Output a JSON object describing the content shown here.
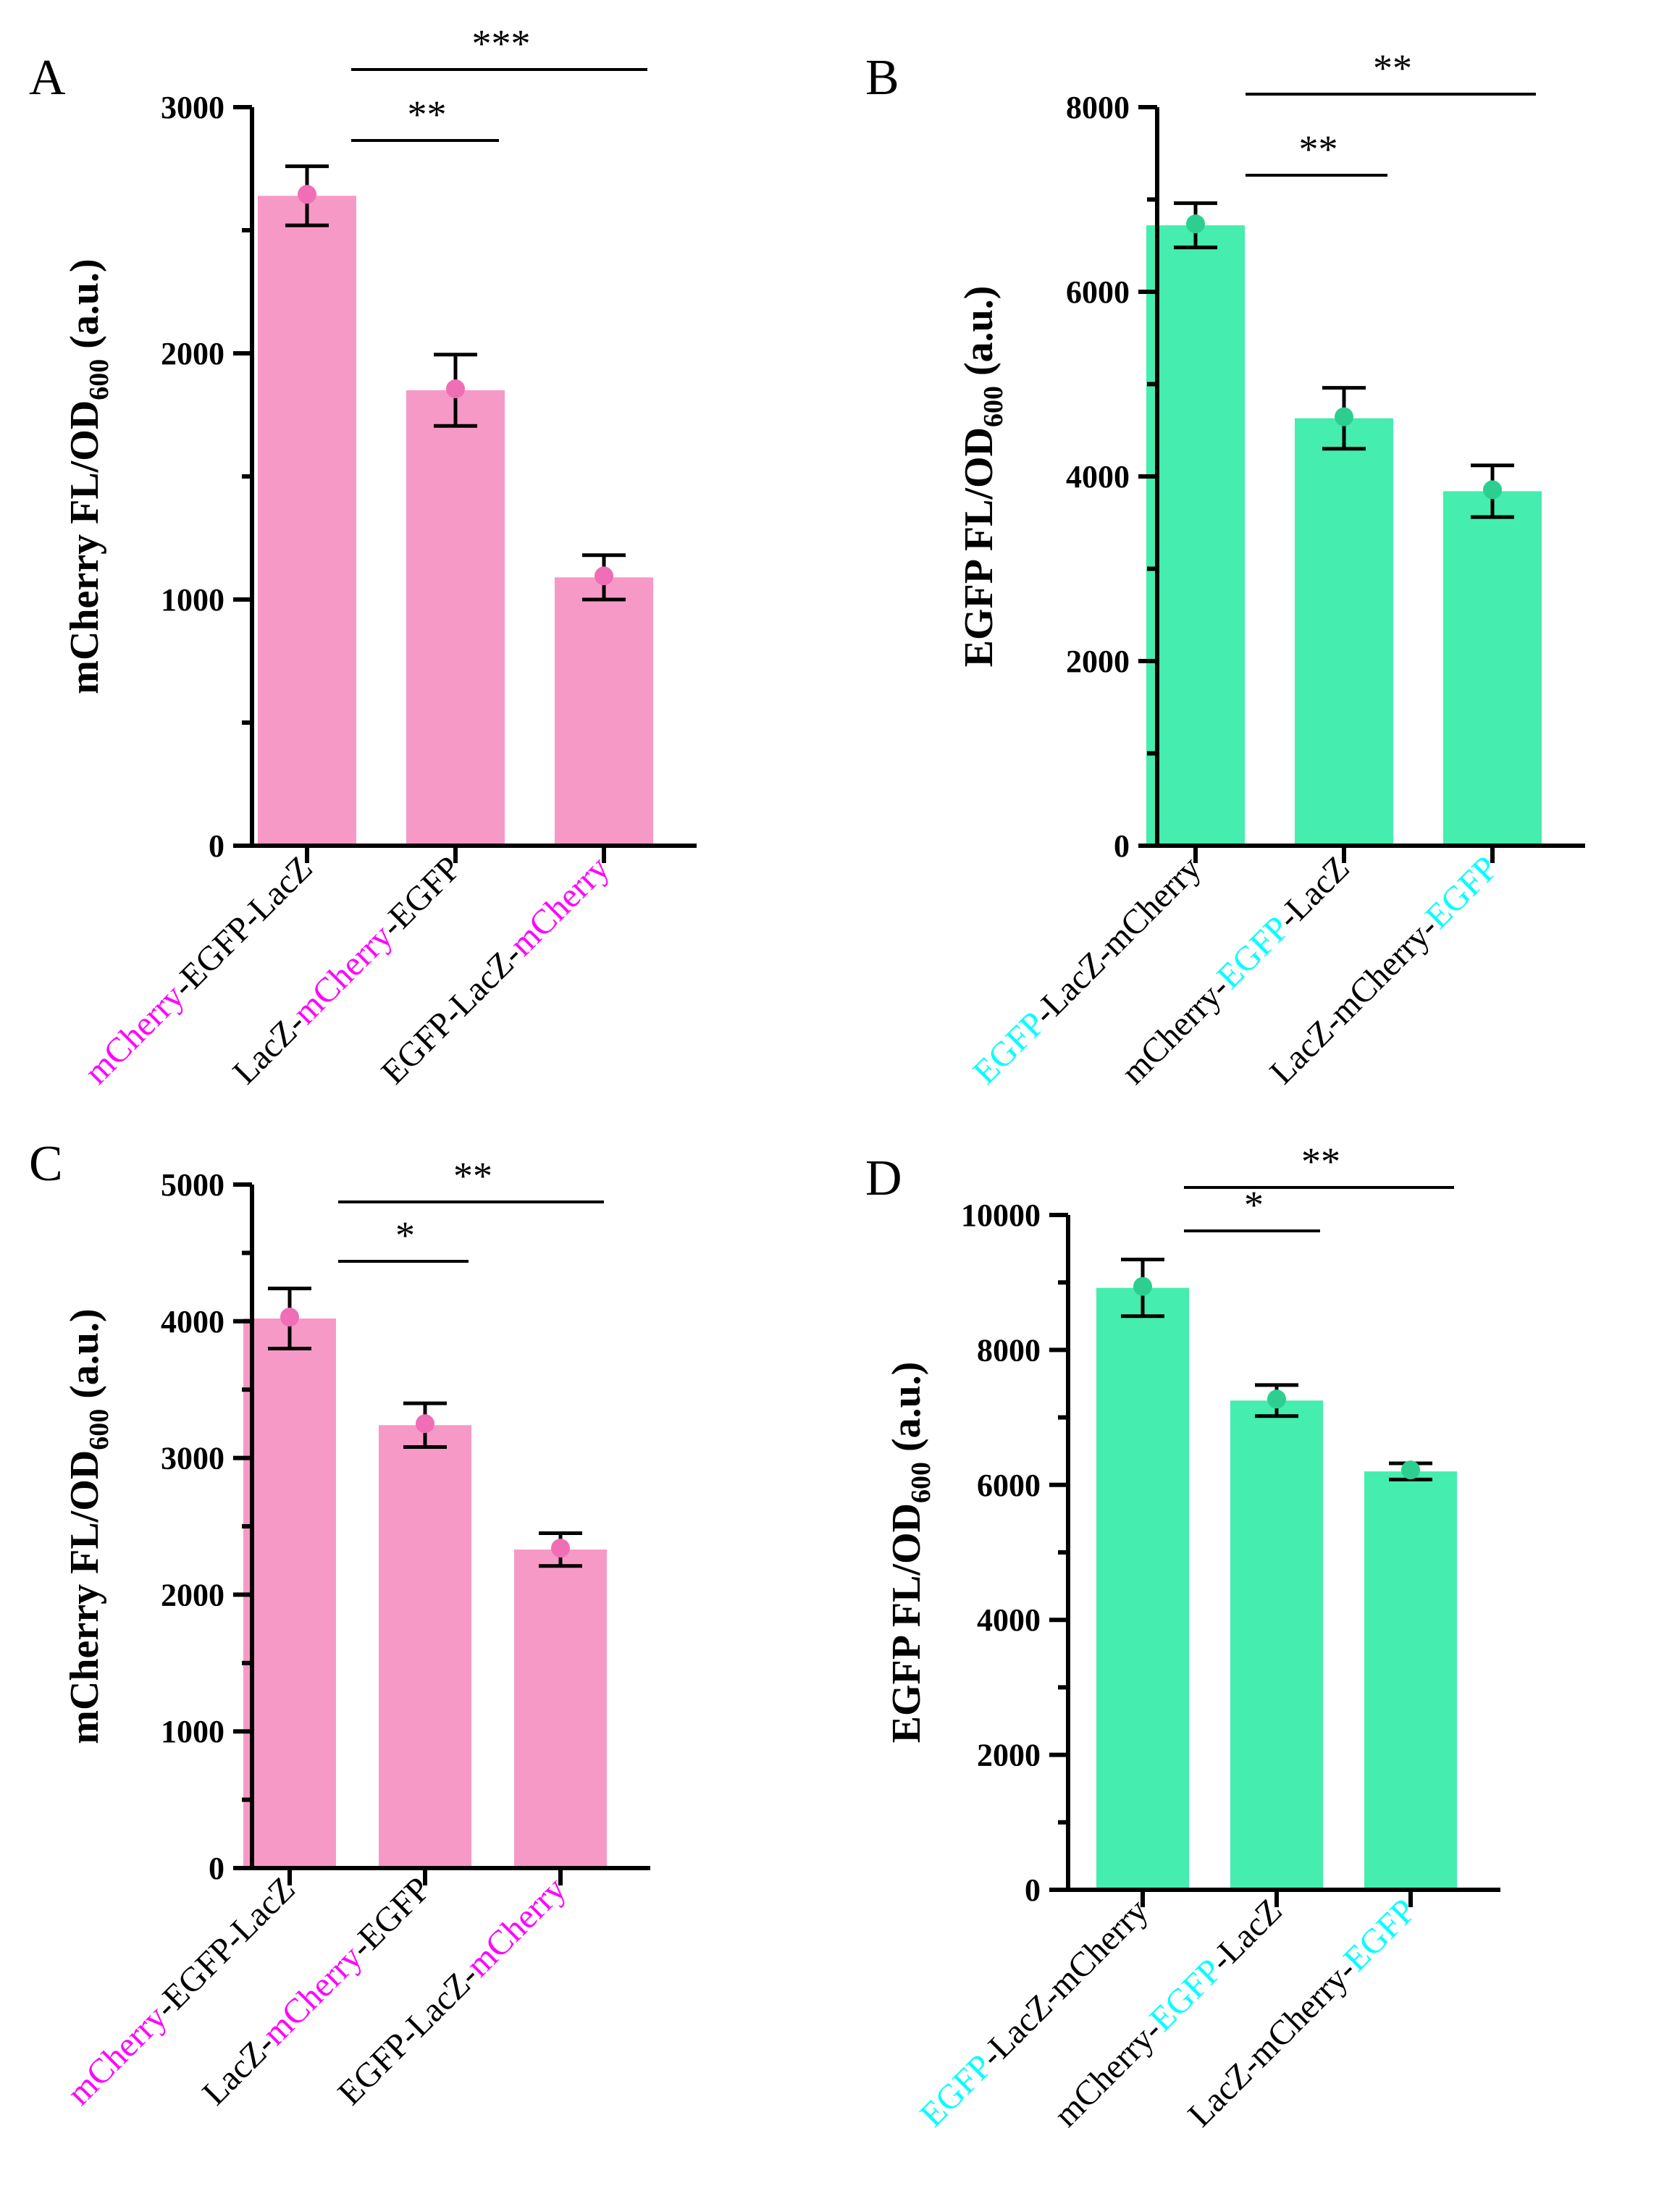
{
  "colors": {
    "pink_bar": "#f799c6",
    "pink_dot": "#f06eb6",
    "green_bar": "#45edae",
    "green_dot": "#2ccf8f",
    "magenta_text": "#ff00ff",
    "cyan_text": "#00ffff",
    "black": "#000000"
  },
  "chart_data": [
    {
      "panel": "A",
      "type": "bar",
      "ylabel": "mCherry FL/OD",
      "ylabel_sub": "600",
      "ylabel_suffix": " (a.u.)",
      "ylim": [
        0,
        3000
      ],
      "yticks": [
        "0",
        "1000",
        "2000",
        "3000"
      ],
      "bar_color": "pink",
      "categories": [
        [
          {
            "t": "mCherry",
            "c": "magenta"
          },
          {
            "t": "-EGFP-LacZ",
            "c": "black"
          }
        ],
        [
          {
            "t": "LacZ-",
            "c": "black"
          },
          {
            "t": "mCherry",
            "c": "magenta"
          },
          {
            "t": "-EGFP",
            "c": "black"
          }
        ],
        [
          {
            "t": "EGFP-LacZ-",
            "c": "black"
          },
          {
            "t": "mCherry",
            "c": "magenta"
          }
        ]
      ],
      "values": [
        2640,
        1850,
        1090
      ],
      "errors": [
        120,
        145,
        90
      ],
      "significance": [
        {
          "from": 0,
          "to": 1,
          "label": "**"
        },
        {
          "from": 0,
          "to": 2,
          "label": "***"
        }
      ]
    },
    {
      "panel": "B",
      "type": "bar",
      "ylabel": "EGFP FL/OD",
      "ylabel_sub": "600",
      "ylabel_suffix": " (a.u.)",
      "ylim": [
        0,
        8000
      ],
      "yticks": [
        "0",
        "2000",
        "4000",
        "6000",
        "8000"
      ],
      "bar_color": "green",
      "categories": [
        [
          {
            "t": "EGFP",
            "c": "cyan"
          },
          {
            "t": "-LacZ-mCherry",
            "c": "black"
          }
        ],
        [
          {
            "t": "mCherry-",
            "c": "black"
          },
          {
            "t": "EGFP",
            "c": "cyan"
          },
          {
            "t": "-LacZ",
            "c": "black"
          }
        ],
        [
          {
            "t": "LacZ-mCherry-",
            "c": "black"
          },
          {
            "t": "EGFP",
            "c": "cyan"
          }
        ]
      ],
      "values": [
        6720,
        4630,
        3840
      ],
      "errors": [
        240,
        330,
        280
      ],
      "significance": [
        {
          "from": 0,
          "to": 1,
          "label": "**"
        },
        {
          "from": 0,
          "to": 2,
          "label": "**"
        }
      ]
    },
    {
      "panel": "C",
      "type": "bar",
      "ylabel": "mCherry FL/OD",
      "ylabel_sub": "600",
      "ylabel_suffix": " (a.u.)",
      "ylim": [
        0,
        5000
      ],
      "yticks": [
        "0",
        "1000",
        "2000",
        "3000",
        "4000",
        "5000"
      ],
      "bar_color": "pink",
      "categories": [
        [
          {
            "t": "mCherry",
            "c": "magenta"
          },
          {
            "t": "-EGFP-LacZ",
            "c": "black"
          }
        ],
        [
          {
            "t": "LacZ-",
            "c": "black"
          },
          {
            "t": "mCherry",
            "c": "magenta"
          },
          {
            "t": "-EGFP",
            "c": "black"
          }
        ],
        [
          {
            "t": "EGFP-LacZ-",
            "c": "black"
          },
          {
            "t": "mCherry",
            "c": "magenta"
          }
        ]
      ],
      "values": [
        4020,
        3240,
        2330
      ],
      "errors": [
        220,
        160,
        120
      ],
      "significance": [
        {
          "from": 0,
          "to": 1,
          "label": "*"
        },
        {
          "from": 0,
          "to": 2,
          "label": "**"
        }
      ]
    },
    {
      "panel": "D",
      "type": "bar",
      "ylabel": "EGFP FL/OD",
      "ylabel_sub": "600",
      "ylabel_suffix": " (a.u.)",
      "ylim": [
        0,
        10000
      ],
      "yticks": [
        "0",
        "2000",
        "4000",
        "6000",
        "8000",
        "10000"
      ],
      "bar_color": "green",
      "categories": [
        [
          {
            "t": "EGFP",
            "c": "cyan"
          },
          {
            "t": "-LacZ-mCherry",
            "c": "black"
          }
        ],
        [
          {
            "t": "mCherry-",
            "c": "black"
          },
          {
            "t": "EGFP",
            "c": "cyan"
          },
          {
            "t": "-LacZ",
            "c": "black"
          }
        ],
        [
          {
            "t": "LacZ-mCherry-",
            "c": "black"
          },
          {
            "t": "EGFP",
            "c": "cyan"
          }
        ]
      ],
      "values": [
        8920,
        7250,
        6200
      ],
      "errors": [
        420,
        230,
        120
      ],
      "significance": [
        {
          "from": 0,
          "to": 1,
          "label": "*"
        },
        {
          "from": 0,
          "to": 2,
          "label": "**"
        }
      ]
    }
  ]
}
